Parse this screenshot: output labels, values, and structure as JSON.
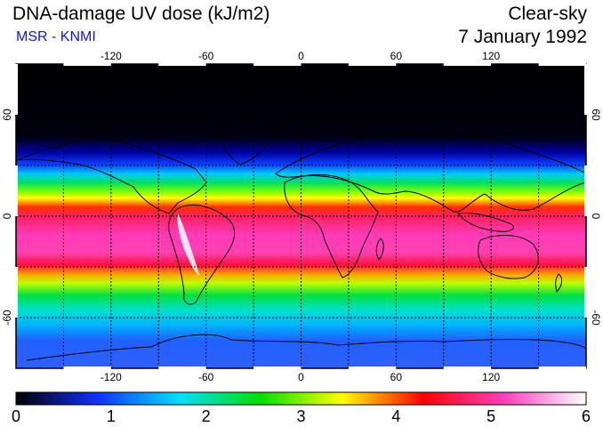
{
  "header": {
    "title": "DNA-damage UV dose (kJ/m2)",
    "subtitle": "MSR - KNMI",
    "sky_type": "Clear-sky",
    "date": "7 January 1992"
  },
  "map": {
    "lon_ticks": [
      "-120",
      "-60",
      "0",
      "60",
      "120"
    ],
    "lat_ticks_left": [
      "60",
      "0",
      "-60"
    ],
    "lat_ticks_right": [
      "60",
      "0",
      "-60"
    ]
  },
  "colorbar": {
    "labels": [
      "0",
      "1",
      "2",
      "3",
      "4",
      "5",
      "6"
    ],
    "stops": [
      "#000000",
      "#1030ff",
      "#00e0ff",
      "#00e000",
      "#ffff00",
      "#ff0000",
      "#ff40c0",
      "#ffffff"
    ]
  }
}
